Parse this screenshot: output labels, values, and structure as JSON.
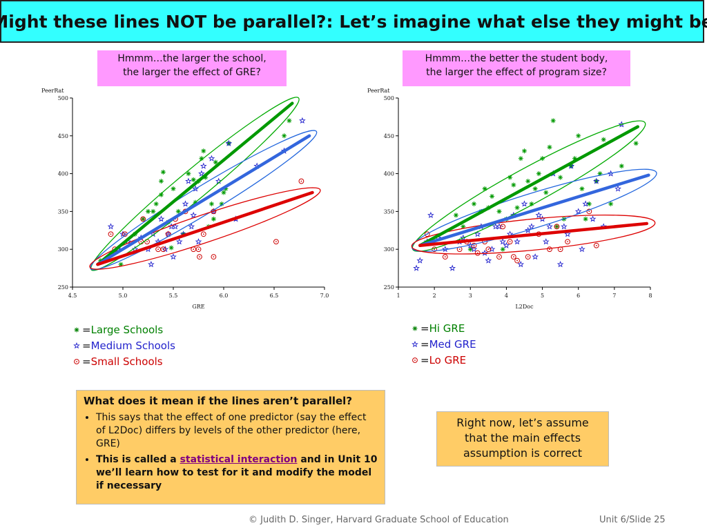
{
  "title": "Might these lines NOT be parallel?: Let’s imagine what else they might be",
  "left_callout": {
    "line1": "Hmmm…the larger the school,",
    "line2": "the larger the effect of GRE?"
  },
  "right_callout": {
    "line1": "Hmmm…the better the student body,",
    "line2": "the larger the effect of program size?"
  },
  "left_legend": [
    {
      "text": "Large Schools",
      "prefix": "=",
      "color": "#008000",
      "symbol": "asterisk"
    },
    {
      "text": "Medium Schools",
      "prefix": "=",
      "color": "#2222cc",
      "symbol": "star"
    },
    {
      "text": "Small Schools",
      "prefix": "=",
      "color": "#cc0000",
      "symbol": "circle"
    }
  ],
  "right_legend": [
    {
      "text": "Hi GRE",
      "prefix": "= ",
      "color": "#008000",
      "symbol": "asterisk"
    },
    {
      "text": "Med GRE",
      "prefix": "= ",
      "color": "#2222cc",
      "symbol": "star"
    },
    {
      "text": "Lo GRE",
      "prefix": "= ",
      "color": "#cc0000",
      "symbol": "circle"
    }
  ],
  "info_box": {
    "heading": "What does it mean if the lines aren’t parallel?",
    "bullet1": "This says that the effect of one predictor (say the effect of L2Doc) differs by levels of the other predictor (here, GRE)",
    "bullet2_pre": "This is called a ",
    "bullet2_link": "statistical interaction",
    "bullet2_post": " and in Unit 10 we’ll learn how to test for it and modify the model if necessary"
  },
  "assume_box": {
    "line1": "Right now, let’s assume",
    "line2": "that the main effects",
    "line3": "assumption is correct"
  },
  "footer": {
    "credit": "© Judith D. Singer, Harvard Graduate School of Education",
    "slide": "Unit 6/Slide 25"
  },
  "colors": {
    "green": "#009900",
    "blue": "#3366dd",
    "red": "#dd0000"
  },
  "chart_data": [
    {
      "type": "scatter",
      "xlabel": "GRE",
      "ylabel": "PeerRat",
      "xlim": [
        4.5,
        7.0
      ],
      "ylim": [
        250,
        500
      ],
      "xticks": [
        "4.5",
        "5.0",
        "5.5",
        "6.0",
        "6.5",
        "7.0"
      ],
      "yticks": [
        "250",
        "300",
        "350",
        "400",
        "450",
        "500"
      ],
      "series": [
        {
          "name": "Large Schools",
          "color": "#009900",
          "symbol": "asterisk",
          "points": [
            [
              4.78,
              285
            ],
            [
              4.98,
              280
            ],
            [
              5.12,
              320
            ],
            [
              5.2,
              340
            ],
            [
              5.25,
              350
            ],
            [
              5.3,
              350
            ],
            [
              5.33,
              360
            ],
            [
              5.38,
              372
            ],
            [
              5.38,
              390
            ],
            [
              5.4,
              402
            ],
            [
              5.45,
              336
            ],
            [
              5.48,
              302
            ],
            [
              5.5,
              380
            ],
            [
              5.55,
              350
            ],
            [
              5.6,
              320
            ],
            [
              5.65,
              400
            ],
            [
              5.7,
              392
            ],
            [
              5.72,
              362
            ],
            [
              5.75,
              390
            ],
            [
              5.78,
              420
            ],
            [
              5.8,
              430
            ],
            [
              5.82,
              395
            ],
            [
              5.85,
              330
            ],
            [
              5.88,
              360
            ],
            [
              5.9,
              340
            ],
            [
              5.92,
              415
            ],
            [
              5.98,
              360
            ],
            [
              6.0,
              375
            ],
            [
              6.02,
              380
            ],
            [
              6.05,
              440
            ],
            [
              6.6,
              450
            ],
            [
              6.65,
              470
            ]
          ]
        },
        {
          "name": "Medium Schools",
          "color": "#2222cc",
          "symbol": "star",
          "points": [
            [
              4.88,
              330
            ],
            [
              4.95,
              300
            ],
            [
              5.0,
              320
            ],
            [
              5.05,
              310
            ],
            [
              5.12,
              300
            ],
            [
              5.18,
              315
            ],
            [
              5.25,
              300
            ],
            [
              5.28,
              280
            ],
            [
              5.3,
              320
            ],
            [
              5.35,
              310
            ],
            [
              5.38,
              340
            ],
            [
              5.42,
              300
            ],
            [
              5.45,
              320
            ],
            [
              5.48,
              330
            ],
            [
              5.5,
              290
            ],
            [
              5.52,
              330
            ],
            [
              5.56,
              310
            ],
            [
              5.6,
              320
            ],
            [
              5.62,
              360
            ],
            [
              5.65,
              390
            ],
            [
              5.68,
              330
            ],
            [
              5.7,
              345
            ],
            [
              5.72,
              380
            ],
            [
              5.75,
              310
            ],
            [
              5.78,
              400
            ],
            [
              5.8,
              410
            ],
            [
              5.88,
              420
            ],
            [
              5.9,
              350
            ],
            [
              5.95,
              390
            ],
            [
              6.05,
              440
            ],
            [
              6.12,
              340
            ],
            [
              6.33,
              410
            ],
            [
              6.6,
              430
            ],
            [
              6.78,
              470
            ]
          ]
        },
        {
          "name": "Small Schools",
          "color": "#cc0000",
          "symbol": "circle",
          "points": [
            [
              4.88,
              320
            ],
            [
              4.92,
              300
            ],
            [
              5.02,
              320
            ],
            [
              5.18,
              310
            ],
            [
              5.2,
              340
            ],
            [
              5.24,
              310
            ],
            [
              5.35,
              300
            ],
            [
              5.4,
              300
            ],
            [
              5.45,
              320
            ],
            [
              5.52,
              340
            ],
            [
              5.62,
              350
            ],
            [
              5.7,
              300
            ],
            [
              5.75,
              300
            ],
            [
              5.76,
              290
            ],
            [
              5.8,
              320
            ],
            [
              5.9,
              350
            ],
            [
              5.9,
              290
            ],
            [
              6.52,
              310
            ],
            [
              6.77,
              390
            ]
          ]
        }
      ],
      "fit_lines": [
        {
          "name": "Large Schools",
          "color": "#009900",
          "x": [
            4.75,
            6.68
          ],
          "y": [
            280,
            493
          ]
        },
        {
          "name": "Medium Schools",
          "color": "#3366dd",
          "x": [
            4.75,
            6.85
          ],
          "y": [
            280,
            450
          ]
        },
        {
          "name": "Small Schools",
          "color": "#dd0000",
          "x": [
            4.75,
            6.88
          ],
          "y": [
            280,
            375
          ]
        }
      ],
      "ellipses": [
        {
          "color": "#00aa00",
          "p1": [
            4.75,
            280
          ],
          "p2": [
            6.68,
            493
          ],
          "b": 42
        },
        {
          "color": "#2266dd",
          "p1": [
            4.75,
            280
          ],
          "p2": [
            6.85,
            450
          ],
          "b": 40
        },
        {
          "color": "#dd0000",
          "p1": [
            4.75,
            280
          ],
          "p2": [
            6.88,
            375
          ],
          "b": 40
        }
      ]
    },
    {
      "type": "scatter",
      "xlabel": "L2Doc",
      "ylabel": "PeerRat",
      "xlim": [
        1,
        8
      ],
      "ylim": [
        250,
        500
      ],
      "xticks": [
        "1",
        "2",
        "3",
        "4",
        "5",
        "6",
        "7",
        "8"
      ],
      "yticks": [
        "250",
        "300",
        "350",
        "400",
        "450",
        "500"
      ],
      "series": [
        {
          "name": "Hi GRE",
          "color": "#009900",
          "symbol": "asterisk",
          "points": [
            [
              2.6,
              345
            ],
            [
              2.8,
              330
            ],
            [
              3.0,
              300
            ],
            [
              3.1,
              360
            ],
            [
              3.3,
              350
            ],
            [
              3.4,
              380
            ],
            [
              3.5,
              355
            ],
            [
              3.6,
              370
            ],
            [
              3.8,
              350
            ],
            [
              3.9,
              300
            ],
            [
              4.0,
              340
            ],
            [
              4.1,
              395
            ],
            [
              4.2,
              385
            ],
            [
              4.3,
              355
            ],
            [
              4.4,
              420
            ],
            [
              4.5,
              430
            ],
            [
              4.6,
              390
            ],
            [
              4.7,
              360
            ],
            [
              4.8,
              380
            ],
            [
              4.9,
              400
            ],
            [
              5.0,
              420
            ],
            [
              5.1,
              375
            ],
            [
              5.2,
              435
            ],
            [
              5.3,
              470
            ],
            [
              5.4,
              330
            ],
            [
              5.5,
              395
            ],
            [
              5.6,
              340
            ],
            [
              5.8,
              410
            ],
            [
              5.9,
              420
            ],
            [
              6.0,
              450
            ],
            [
              6.1,
              380
            ],
            [
              6.2,
              340
            ],
            [
              6.3,
              360
            ],
            [
              6.5,
              390
            ],
            [
              6.6,
              400
            ],
            [
              6.7,
              445
            ],
            [
              6.9,
              360
            ],
            [
              7.2,
              410
            ],
            [
              7.6,
              440
            ]
          ]
        },
        {
          "name": "Med GRE",
          "color": "#2222cc",
          "symbol": "star",
          "points": [
            [
              1.5,
              275
            ],
            [
              1.6,
              285
            ],
            [
              1.8,
              310
            ],
            [
              1.9,
              345
            ],
            [
              2.1,
              315
            ],
            [
              2.3,
              300
            ],
            [
              2.5,
              275
            ],
            [
              2.7,
              310
            ],
            [
              2.8,
              315
            ],
            [
              3.0,
              305
            ],
            [
              3.1,
              300
            ],
            [
              3.2,
              320
            ],
            [
              3.3,
              330
            ],
            [
              3.4,
              295
            ],
            [
              3.5,
              285
            ],
            [
              3.6,
              300
            ],
            [
              3.7,
              330
            ],
            [
              3.8,
              330
            ],
            [
              3.9,
              310
            ],
            [
              4.0,
              305
            ],
            [
              4.1,
              320
            ],
            [
              4.2,
              345
            ],
            [
              4.3,
              310
            ],
            [
              4.4,
              280
            ],
            [
              4.5,
              360
            ],
            [
              4.6,
              325
            ],
            [
              4.7,
              330
            ],
            [
              4.8,
              290
            ],
            [
              4.9,
              345
            ],
            [
              5.0,
              340
            ],
            [
              5.1,
              310
            ],
            [
              5.2,
              330
            ],
            [
              5.3,
              400
            ],
            [
              5.5,
              280
            ],
            [
              5.6,
              330
            ],
            [
              5.7,
              320
            ],
            [
              5.8,
              410
            ],
            [
              6.0,
              350
            ],
            [
              6.1,
              300
            ],
            [
              6.2,
              360
            ],
            [
              6.4,
              340
            ],
            [
              6.5,
              390
            ],
            [
              6.7,
              330
            ],
            [
              6.9,
              400
            ],
            [
              7.1,
              380
            ],
            [
              7.2,
              465
            ]
          ]
        },
        {
          "name": "Lo GRE",
          "color": "#cc0000",
          "symbol": "circle",
          "points": [
            [
              1.8,
              320
            ],
            [
              2.0,
              300
            ],
            [
              2.3,
              290
            ],
            [
              2.7,
              300
            ],
            [
              2.9,
              310
            ],
            [
              3.1,
              305
            ],
            [
              3.2,
              295
            ],
            [
              3.4,
              310
            ],
            [
              3.5,
              300
            ],
            [
              3.8,
              290
            ],
            [
              3.9,
              330
            ],
            [
              4.1,
              310
            ],
            [
              4.2,
              290
            ],
            [
              4.3,
              285
            ],
            [
              4.6,
              290
            ],
            [
              4.9,
              320
            ],
            [
              5.2,
              300
            ],
            [
              5.4,
              330
            ],
            [
              5.5,
              300
            ],
            [
              5.7,
              310
            ],
            [
              6.3,
              350
            ],
            [
              6.5,
              305
            ]
          ]
        }
      ],
      "fit_lines": [
        {
          "name": "Hi GRE",
          "color": "#009900",
          "x": [
            1.6,
            7.65
          ],
          "y": [
            305,
            462
          ]
        },
        {
          "name": "Med GRE",
          "color": "#3366dd",
          "x": [
            1.6,
            7.95
          ],
          "y": [
            305,
            398
          ]
        },
        {
          "name": "Lo GRE",
          "color": "#dd0000",
          "x": [
            1.6,
            7.9
          ],
          "y": [
            305,
            334
          ]
        }
      ],
      "ellipses": [
        {
          "color": "#00aa00",
          "p1": [
            1.6,
            305
          ],
          "p2": [
            7.65,
            462
          ],
          "b": 52
        },
        {
          "color": "#2266dd",
          "p1": [
            1.6,
            305
          ],
          "p2": [
            7.95,
            398
          ],
          "b": 50
        },
        {
          "color": "#dd0000",
          "p1": [
            1.6,
            305
          ],
          "p2": [
            7.9,
            334
          ],
          "b": 45
        }
      ]
    }
  ]
}
